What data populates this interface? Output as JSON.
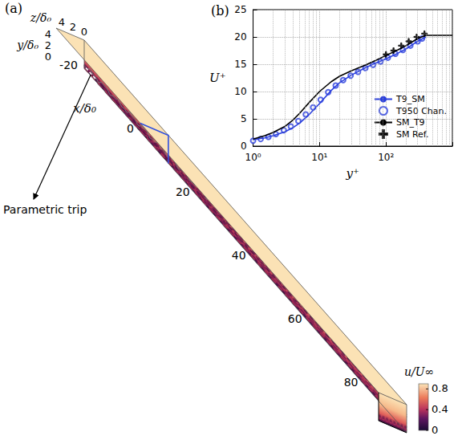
{
  "figure_a": {
    "label": "(a)",
    "x_title": "x/δ₀",
    "xlim": [
      -30,
      85
    ],
    "xticks": [
      -20,
      0,
      20,
      40,
      60,
      80
    ],
    "y_title": "y/δ₀",
    "ylim": [
      0,
      5
    ],
    "yticks": [
      0,
      2,
      4
    ],
    "z_title": "z/δ₀",
    "zlim": [
      0,
      5
    ],
    "zticks": [
      0,
      2,
      4
    ],
    "annotation": "Parametric trip",
    "colorbar": {
      "title": "u/U∞",
      "range": [
        0,
        0.9
      ],
      "ticks": [
        0,
        0.4,
        0.8
      ]
    }
  },
  "chart_data": {
    "type": "line",
    "title": "(b)",
    "x_label": "y⁺",
    "y_label": "U⁺",
    "log": "x",
    "xlim": [
      1,
      1000
    ],
    "xticks": [
      {
        "value": 1,
        "label": "10⁰"
      },
      {
        "value": 10,
        "label": "10¹"
      },
      {
        "value": 100,
        "label": "10²"
      }
    ],
    "ylim": [
      0,
      25
    ],
    "yticks": [
      0,
      5,
      10,
      15,
      20,
      25
    ],
    "grid": true,
    "legend": "lower right",
    "series": [
      {
        "name": "T9_SM",
        "type": "line",
        "color": "#2a3fdd",
        "line_style": "solid",
        "x": [
          1,
          1.5,
          2,
          3,
          4,
          5,
          7,
          10,
          15,
          20,
          30,
          50,
          70,
          100,
          150,
          200,
          300,
          400
        ],
        "values": [
          1.2,
          1.5,
          1.9,
          2.6,
          3.4,
          4.2,
          5.8,
          7.8,
          10.2,
          11.6,
          13.0,
          14.4,
          15.2,
          16.0,
          17.0,
          17.8,
          19.2,
          20.0
        ]
      },
      {
        "name": "T950 Chan.",
        "type": "scatter",
        "color": "#2a3fdd",
        "marker": "circle",
        "x": [
          1,
          1.3,
          1.7,
          2.2,
          2.9,
          3.7,
          4.8,
          6.2,
          8,
          10.4,
          13.5,
          17.5,
          22.7,
          29.4,
          38,
          49,
          64,
          83,
          107,
          139,
          180,
          233,
          300,
          350
        ],
        "values": [
          1.0,
          1.3,
          1.7,
          2.2,
          2.9,
          3.6,
          4.6,
          5.8,
          7.1,
          8.5,
          9.9,
          11.1,
          12.1,
          12.9,
          13.6,
          14.3,
          14.9,
          15.5,
          16.2,
          16.9,
          17.6,
          18.4,
          19.2,
          19.7
        ]
      },
      {
        "name": "SM_T9",
        "type": "line",
        "color": "#000000",
        "line_style": "solid",
        "x": [
          1,
          1.5,
          2,
          3,
          4,
          5,
          7,
          10,
          15,
          20,
          30,
          50,
          70,
          100,
          150,
          200,
          300,
          400,
          600,
          1000
        ],
        "values": [
          1.3,
          1.9,
          2.5,
          3.6,
          4.8,
          6.0,
          8.0,
          10.0,
          11.8,
          12.8,
          13.8,
          14.9,
          15.7,
          16.6,
          17.6,
          18.4,
          19.7,
          20.3,
          20.3,
          20.3
        ]
      },
      {
        "name": "SM Ref.",
        "type": "scatter",
        "color": "#000000",
        "marker": "plus",
        "x": [
          100,
          130,
          170,
          220,
          290,
          380
        ],
        "values": [
          16.8,
          17.5,
          18.4,
          19.2,
          20.0,
          20.6
        ]
      }
    ]
  }
}
